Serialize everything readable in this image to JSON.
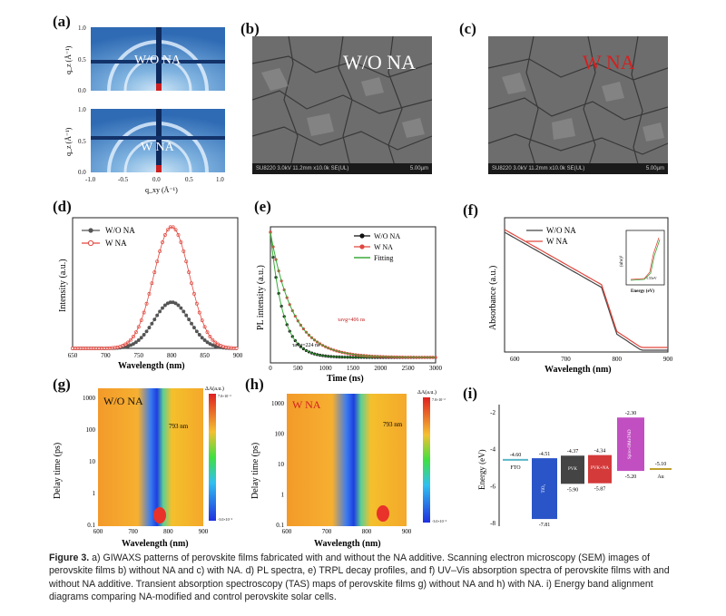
{
  "panels": {
    "a": {
      "label": "(a)",
      "top_text": "W/O NA",
      "bottom_text": "W NA",
      "ylabel": "q_z (Å⁻¹)",
      "xlabel": "q_xy (Å⁻¹)",
      "xticks": [
        "-1.0",
        "-0.5",
        "0.0",
        "0.5",
        "1.0"
      ],
      "yticks": [
        "0.0",
        "0.5",
        "1.0"
      ]
    },
    "b": {
      "label": "(b)",
      "text": "W/O NA",
      "info": "SU8220 3.0kV 11.2mm x10.0k SE(UL)",
      "scale": "5.00µm"
    },
    "c": {
      "label": "(c)",
      "text": "W NA",
      "info": "SU8220 3.0kV 11.2mm x10.0k SE(UL)",
      "scale": "5.00µm"
    },
    "d": {
      "label": "(d)",
      "xlabel": "Wavelength (nm)",
      "ylabel": "Intensity (a.u.)"
    },
    "e": {
      "label": "(e)",
      "xlabel": "Time (ns)",
      "ylabel": "PL intensity (a.u.)",
      "tau1": "τavg=406 ns",
      "tau2": "τavg=224 ns"
    },
    "f": {
      "label": "(f)",
      "xlabel": "Wavelength (nm)",
      "ylabel": "Absorbance (a.u.)",
      "inset_ylabel": "(αhν)²",
      "inset_xlabel": "Energy (eV)",
      "inset_value": "1.55eV"
    },
    "g": {
      "label": "(g)",
      "text": "W/O NA",
      "peak": "793 nm",
      "xlabel": "Wavelength (nm)",
      "ylabel": "Delay time (ps)",
      "cb_title": "ΔA(a.u.)"
    },
    "h": {
      "label": "(h)",
      "text": "W NA",
      "peak": "793 nm",
      "xlabel": "Wavelength (nm)",
      "ylabel": "Delay time (ps)",
      "cb_title": "ΔA(a.u.)"
    },
    "i": {
      "label": "(i)",
      "ylabel": "Energy (eV)"
    }
  },
  "chart_data": [
    {
      "type": "line",
      "panel": "d",
      "x": [
        650,
        700,
        750,
        800,
        850,
        900
      ],
      "series": [
        {
          "name": "W/O NA",
          "color": "#555555",
          "peak": 800,
          "amplitude": 0.38
        },
        {
          "name": "W NA",
          "color": "#e0473e",
          "peak": 800,
          "amplitude": 1.0
        }
      ],
      "xticks": [
        "650",
        "700",
        "750",
        "800",
        "850",
        "900"
      ],
      "xlim": [
        650,
        900
      ],
      "legend": "top-left"
    },
    {
      "type": "line",
      "panel": "e",
      "x": [
        0,
        500,
        1000,
        1500,
        2000,
        2500,
        3000
      ],
      "series": [
        {
          "name": "W/O NA",
          "color": "#111111",
          "tau_ns": 224
        },
        {
          "name": "W NA",
          "color": "#e0473e",
          "tau_ns": 406
        },
        {
          "name": "Fitting",
          "color": "#3aa83a"
        }
      ],
      "xticks": [
        "0",
        "500",
        "1000",
        "1500",
        "2000",
        "2500",
        "3000"
      ],
      "xlim": [
        0,
        3000
      ],
      "legend": "top-right"
    },
    {
      "type": "line",
      "panel": "f",
      "series": [
        {
          "name": "W/O NA",
          "color": "#444444"
        },
        {
          "name": "W NA",
          "color": "#e0473e"
        }
      ],
      "xticks": [
        "600",
        "700",
        "800",
        "900"
      ],
      "xlim": [
        580,
        900
      ],
      "legend": "top"
    },
    {
      "type": "heatmap",
      "panel": "g",
      "xticks": [
        "600",
        "700",
        "800",
        "900"
      ],
      "yticks": [
        "0.1",
        "1",
        "10",
        "100",
        "1000"
      ],
      "colorbar": [
        "7.0×10⁻³",
        "-3.0×10⁻²"
      ],
      "bleach_nm": 793
    },
    {
      "type": "heatmap",
      "panel": "h",
      "xticks": [
        "600",
        "700",
        "800",
        "900"
      ],
      "yticks": [
        "0.1",
        "1",
        "10",
        "100",
        "1000"
      ],
      "colorbar": [
        "7.0×10⁻³",
        "-3.0×10⁻²"
      ],
      "bleach_nm": 793
    },
    {
      "type": "bar",
      "panel": "i",
      "yticks": [
        "-2",
        "-4",
        "-6",
        "-8"
      ],
      "ylim": [
        -8.2,
        -1.6
      ],
      "levels": [
        {
          "name": "FTO",
          "top": -4.6,
          "bottom": -4.6,
          "color": "#5ab6c8"
        },
        {
          "name": "TiO₂",
          "top": -4.51,
          "bottom": -7.81,
          "color": "#2a55c8"
        },
        {
          "name": "PVK",
          "top": -4.37,
          "bottom": -5.9,
          "color": "#444444"
        },
        {
          "name": "PVK+NA",
          "top": -4.34,
          "bottom": -5.87,
          "color": "#d43a3a"
        },
        {
          "name": "Spiro-OMeTAD",
          "top": -2.3,
          "bottom": -5.2,
          "color": "#c24fc2"
        },
        {
          "name": "Au",
          "top": -5.1,
          "bottom": -5.1,
          "color": "#c0a030"
        }
      ],
      "values_text": {
        "FTO": "-4.60",
        "TiO2_top": "-4.51",
        "TiO2_bot": "-7.81",
        "PVK_top": "-4.37",
        "PVK_bot": "-5.90",
        "PVKNA_top": "-4.34",
        "PVKNA_bot": "-5.87",
        "Spiro_top": "-2.30",
        "Spiro_bot": "-5.20",
        "Au": "-5.10"
      }
    }
  ],
  "caption": {
    "head": "Figure 3.",
    "body": " a) GIWAXS patterns of perovskite films fabricated with and without the NA additive. Scanning electron microscopy (SEM) images of perovskite films b) without NA and c) with NA. d) PL spectra, e) TRPL decay profiles, and f) UV–Vis absorption spectra of perovskite films with and without NA additive. Transient absorption spectroscopy (TAS) maps of perovskite films g) without NA and h) with NA. i) Energy band alignment diagrams comparing NA-modified and control perovskite solar cells."
  }
}
